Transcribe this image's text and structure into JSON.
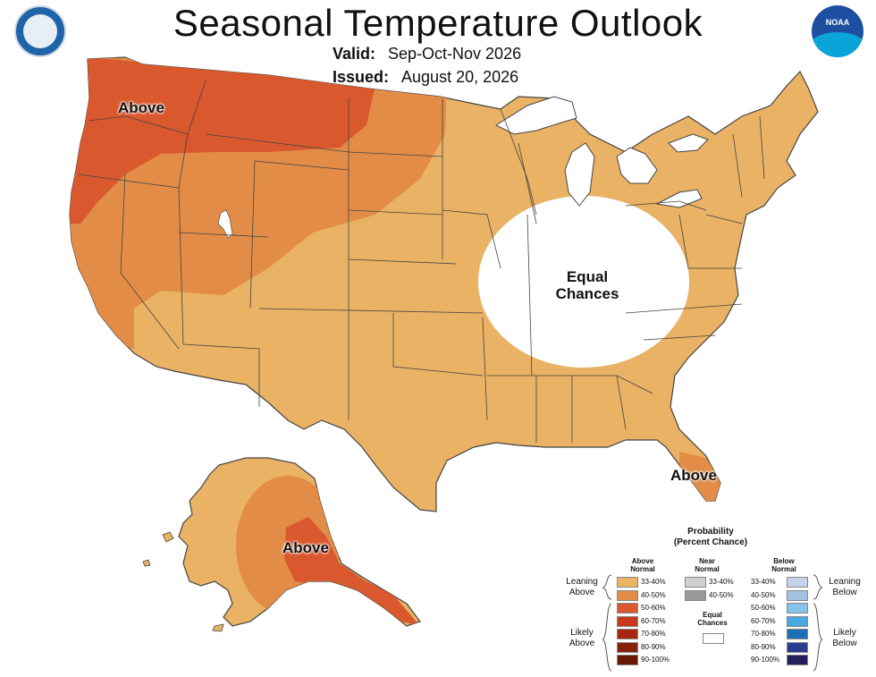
{
  "title": "Seasonal Temperature Outlook",
  "valid_label": "Valid:",
  "valid_value": "Sep-Oct-Nov 2026",
  "issued_label": "Issued:",
  "issued_value": "August 20, 2026",
  "logos": {
    "left": "commerce-seal",
    "right": "NOAA"
  },
  "map_labels": {
    "pacific_nw": "Above",
    "equal_1": "Equal",
    "equal_2": "Chances",
    "florida": "Above",
    "alaska": "Above"
  },
  "colors": {
    "above_33_40": "#e9b264",
    "above_40_50": "#e28c47",
    "above_50_60": "#d9582e",
    "equal": "#ffffff",
    "border": "#444444"
  },
  "legend": {
    "title_1": "Probability",
    "title_2": "(Percent Chance)",
    "above_head_1": "Above",
    "above_head_2": "Normal",
    "near_head_1": "Near",
    "near_head_2": "Normal",
    "below_head_1": "Below",
    "below_head_2": "Normal",
    "leaning_above_1": "Leaning",
    "leaning_above_2": "Above",
    "likely_above_1": "Likely",
    "likely_above_2": "Above",
    "leaning_below_1": "Leaning",
    "leaning_below_2": "Below",
    "likely_below_1": "Likely",
    "likely_below_2": "Below",
    "equal_1": "Equal",
    "equal_2": "Chances",
    "above": [
      {
        "range": "33-40%",
        "color": "#e9b264"
      },
      {
        "range": "40-50%",
        "color": "#e28c47"
      },
      {
        "range": "50-60%",
        "color": "#d9582e"
      },
      {
        "range": "60-70%",
        "color": "#c53a1d"
      },
      {
        "range": "70-80%",
        "color": "#a5270f"
      },
      {
        "range": "80-90%",
        "color": "#85200a"
      },
      {
        "range": "90-100%",
        "color": "#6a1806"
      }
    ],
    "near": [
      {
        "range": "33-40%",
        "color": "#cfcfcf"
      },
      {
        "range": "40-50%",
        "color": "#9a9a9a"
      }
    ],
    "below": [
      {
        "range": "33-40%",
        "color": "#c3d2ea"
      },
      {
        "range": "40-50%",
        "color": "#a6c1e4"
      },
      {
        "range": "50-60%",
        "color": "#87c3ec"
      },
      {
        "range": "60-70%",
        "color": "#4aa7e0"
      },
      {
        "range": "70-80%",
        "color": "#1f6fb6"
      },
      {
        "range": "80-90%",
        "color": "#2a3c8c"
      },
      {
        "range": "90-100%",
        "color": "#25205c"
      }
    ]
  }
}
